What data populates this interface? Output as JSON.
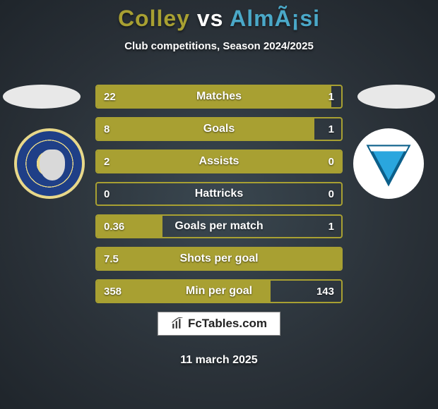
{
  "title": {
    "player1": "Colley",
    "vs": "vs",
    "player2": "AlmÃ¡si",
    "player1_color": "#a8a032",
    "player2_color": "#4aa8c8"
  },
  "subtitle": "Club competitions, Season 2024/2025",
  "colors": {
    "bar_border": "#a8a032",
    "bar_fill": "#a8a032",
    "bar_empty": "transparent",
    "text": "#ffffff"
  },
  "bars": [
    {
      "label": "Matches",
      "left": "22",
      "right": "1",
      "fill_pct": 96
    },
    {
      "label": "Goals",
      "left": "8",
      "right": "1",
      "fill_pct": 89
    },
    {
      "label": "Assists",
      "left": "2",
      "right": "0",
      "fill_pct": 100
    },
    {
      "label": "Hattricks",
      "left": "0",
      "right": "0",
      "fill_pct": 0
    },
    {
      "label": "Goals per match",
      "left": "0.36",
      "right": "1",
      "fill_pct": 27
    },
    {
      "label": "Shots per goal",
      "left": "7.5",
      "right": "",
      "fill_pct": 100
    },
    {
      "label": "Min per goal",
      "left": "358",
      "right": "143",
      "fill_pct": 71
    }
  ],
  "footer": {
    "brand": "FcTables.com",
    "date": "11 march 2025"
  },
  "badges": {
    "left_name": "puskas-ferenc-badge",
    "right_name": "zte-badge"
  }
}
